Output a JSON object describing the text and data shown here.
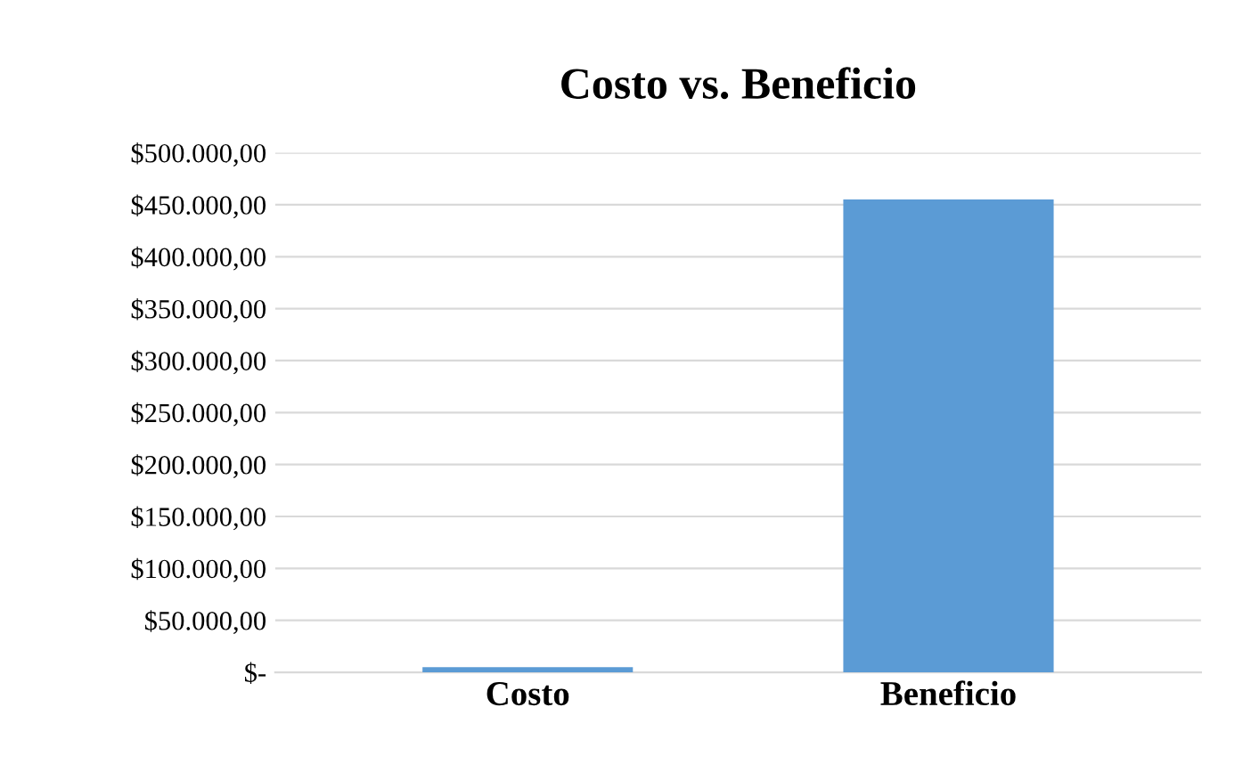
{
  "chart_data": {
    "type": "bar",
    "title": "Costo vs. Beneficio",
    "categories": [
      "Costo",
      "Beneficio"
    ],
    "values": [
      5000,
      455000
    ],
    "color": "#5b9bd5",
    "ylim": [
      0,
      500000
    ],
    "yticks": [
      {
        "value": 0,
        "label": "$-"
      },
      {
        "value": 50000,
        "label": "$50.000,00"
      },
      {
        "value": 100000,
        "label": "$100.000,00"
      },
      {
        "value": 150000,
        "label": "$150.000,00"
      },
      {
        "value": 200000,
        "label": "$200.000,00"
      },
      {
        "value": 250000,
        "label": "$250.000,00"
      },
      {
        "value": 300000,
        "label": "$300.000,00"
      },
      {
        "value": 350000,
        "label": "$350.000,00"
      },
      {
        "value": 400000,
        "label": "$400.000,00"
      },
      {
        "value": 450000,
        "label": "$450.000,00"
      },
      {
        "value": 500000,
        "label": "$500.000,00"
      }
    ],
    "grid": "y"
  }
}
